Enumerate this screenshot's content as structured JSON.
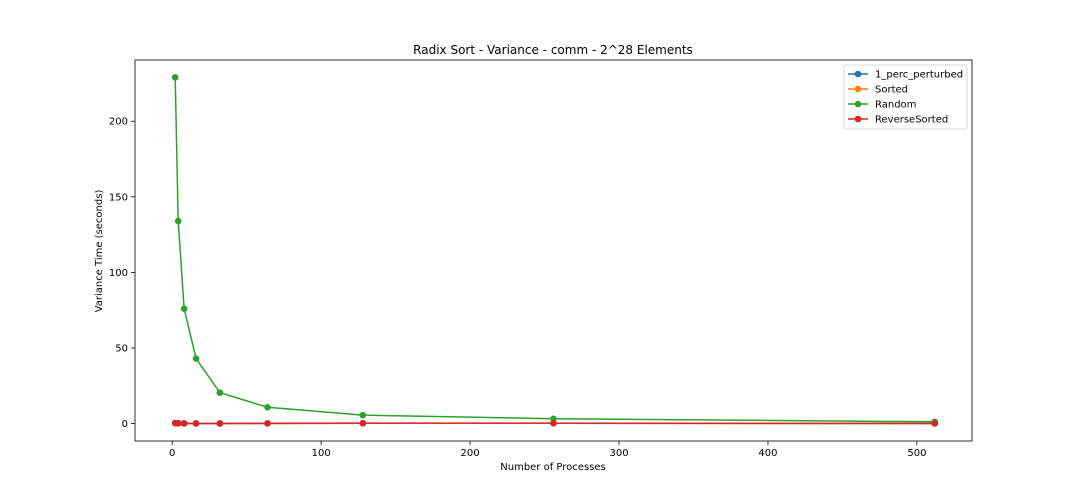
{
  "chart_data": {
    "type": "line",
    "title": "Radix Sort - Variance - comm - 2^28 Elements",
    "xlabel": "Number of Processes",
    "ylabel": "Variance Time (seconds)",
    "xlim": [
      -25,
      537
    ],
    "ylim": [
      -11.5,
      240.5
    ],
    "xticks": [
      0,
      100,
      200,
      300,
      400,
      500
    ],
    "yticks": [
      0,
      50,
      100,
      150,
      200
    ],
    "grid": false,
    "legend_position": "top-right",
    "x": [
      2,
      4,
      8,
      16,
      32,
      64,
      128,
      256,
      512
    ],
    "series": [
      {
        "name": "1_perc_perturbed",
        "color": "#1f77b4",
        "values": [
          0.3,
          0.2,
          0.1,
          0.1,
          0.1,
          0.1,
          0.2,
          0.2,
          0.1
        ]
      },
      {
        "name": "Sorted",
        "color": "#ff7f0e",
        "values": [
          0.2,
          0.2,
          0.1,
          0.1,
          0.1,
          0.1,
          0.2,
          0.2,
          0.1
        ]
      },
      {
        "name": "Random",
        "color": "#2ca02c",
        "values": [
          229,
          134,
          76,
          43,
          20.5,
          10.8,
          5.6,
          3.2,
          1.2
        ]
      },
      {
        "name": "ReverseSorted",
        "color": "#d62728",
        "values": [
          0.4,
          0.3,
          0.1,
          0.1,
          0.1,
          0.2,
          0.3,
          0.3,
          0.1
        ]
      }
    ]
  }
}
